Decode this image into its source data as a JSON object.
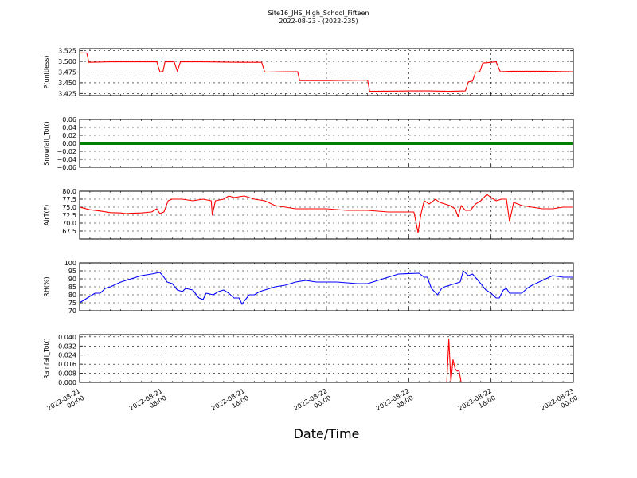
{
  "figure": {
    "title": "Site16_JHS_High_School_Fifteen",
    "subtitle": "2022-08-23 - (2022-235)",
    "xlabel": "Date/Time"
  },
  "x_ticks": [
    {
      "l1": "2022-08-21",
      "l2": "00:00",
      "t": 0
    },
    {
      "l1": "2022-08-21",
      "l2": "08:00",
      "t": 8
    },
    {
      "l1": "2022-08-21",
      "l2": "16:00",
      "t": 16
    },
    {
      "l1": "2022-08-22",
      "l2": "00:00",
      "t": 24
    },
    {
      "l1": "2022-08-22",
      "l2": "08:00",
      "t": 32
    },
    {
      "l1": "2022-08-22",
      "l2": "16:00",
      "t": 40
    },
    {
      "l1": "2022-08-23",
      "l2": "00:00",
      "t": 48
    }
  ],
  "chart_data": [
    {
      "type": "line",
      "ylabel": "P(unitless)",
      "color": "#ff0000",
      "xlim": [
        0,
        48
      ],
      "ylim": [
        3.42,
        3.53
      ],
      "yticks": [
        3.425,
        3.45,
        3.475,
        3.5,
        3.525
      ],
      "ytick_labels": [
        "3.425",
        "3.450",
        "3.475",
        "3.500",
        "3.525"
      ],
      "points": [
        [
          0,
          3.52
        ],
        [
          0.7,
          3.52
        ],
        [
          0.9,
          3.498
        ],
        [
          3,
          3.499
        ],
        [
          5,
          3.499
        ],
        [
          7.5,
          3.499
        ],
        [
          7.8,
          3.476
        ],
        [
          8.1,
          3.476
        ],
        [
          8.3,
          3.499
        ],
        [
          9.2,
          3.499
        ],
        [
          9.5,
          3.477
        ],
        [
          9.8,
          3.499
        ],
        [
          12,
          3.499
        ],
        [
          15.5,
          3.498
        ],
        [
          16.5,
          3.498
        ],
        [
          17.7,
          3.498
        ],
        [
          18,
          3.475
        ],
        [
          20,
          3.476
        ],
        [
          21.2,
          3.476
        ],
        [
          21.4,
          3.455
        ],
        [
          24,
          3.455
        ],
        [
          27,
          3.456
        ],
        [
          28,
          3.456
        ],
        [
          28.2,
          3.43
        ],
        [
          32,
          3.431
        ],
        [
          34,
          3.431
        ],
        [
          36,
          3.43
        ],
        [
          37.5,
          3.431
        ],
        [
          37.8,
          3.452
        ],
        [
          38.2,
          3.454
        ],
        [
          38.5,
          3.475
        ],
        [
          38.9,
          3.476
        ],
        [
          39.2,
          3.496
        ],
        [
          40,
          3.498
        ],
        [
          40.5,
          3.499
        ],
        [
          40.9,
          3.476
        ],
        [
          42,
          3.477
        ],
        [
          45,
          3.477
        ],
        [
          48,
          3.476
        ]
      ]
    },
    {
      "type": "line",
      "ylabel": "Snowfall_Tot()",
      "color": "#007f00",
      "xlim": [
        0,
        48
      ],
      "ylim": [
        -0.06,
        0.06
      ],
      "yticks": [
        -0.06,
        -0.04,
        -0.02,
        0,
        0.02,
        0.04,
        0.06
      ],
      "ytick_labels": [
        "−0.06",
        "−0.04",
        "−0.02",
        "0.00",
        "0.02",
        "0.04",
        "0.06"
      ],
      "points": [
        [
          0,
          0
        ],
        [
          48,
          0
        ]
      ]
    },
    {
      "type": "line",
      "ylabel": "AirT(F)",
      "color": "#ff0000",
      "xlim": [
        0,
        48
      ],
      "ylim": [
        65,
        80
      ],
      "yticks": [
        67.5,
        70,
        72.5,
        75,
        77.5,
        80
      ],
      "ytick_labels": [
        "67.5",
        "70.0",
        "72.5",
        "75.0",
        "77.5",
        "80.0"
      ],
      "points": [
        [
          0,
          75
        ],
        [
          1,
          74.2
        ],
        [
          2,
          73.8
        ],
        [
          3,
          73.3
        ],
        [
          4,
          73.2
        ],
        [
          4.5,
          73
        ],
        [
          5,
          73.1
        ],
        [
          6,
          73.2
        ],
        [
          7,
          73.5
        ],
        [
          7.5,
          74.5
        ],
        [
          7.8,
          73
        ],
        [
          8.2,
          73.5
        ],
        [
          8.6,
          77
        ],
        [
          9,
          77.5
        ],
        [
          10,
          77.5
        ],
        [
          11,
          77
        ],
        [
          12,
          77.5
        ],
        [
          12.8,
          77
        ],
        [
          12.9,
          72.5
        ],
        [
          13.2,
          77
        ],
        [
          14,
          77.5
        ],
        [
          14.5,
          78.5
        ],
        [
          15,
          78
        ],
        [
          16,
          78.5
        ],
        [
          16.5,
          78
        ],
        [
          17,
          77.5
        ],
        [
          18,
          77
        ],
        [
          19,
          75.5
        ],
        [
          20,
          75
        ],
        [
          21,
          74.5
        ],
        [
          24,
          74.5
        ],
        [
          26,
          74
        ],
        [
          28,
          74
        ],
        [
          30,
          73.5
        ],
        [
          32,
          73.5
        ],
        [
          32.5,
          73.5
        ],
        [
          32.6,
          72
        ],
        [
          32.9,
          67
        ],
        [
          33.2,
          73
        ],
        [
          33.5,
          77
        ],
        [
          34,
          76
        ],
        [
          34.6,
          77.5
        ],
        [
          35,
          76.5
        ],
        [
          36,
          75.5
        ],
        [
          36.5,
          74.5
        ],
        [
          36.8,
          72
        ],
        [
          37.1,
          75.5
        ],
        [
          37.5,
          74
        ],
        [
          38,
          74
        ],
        [
          38.5,
          76
        ],
        [
          39,
          77
        ],
        [
          39.6,
          79
        ],
        [
          40,
          78
        ],
        [
          40.5,
          77
        ],
        [
          41,
          77.5
        ],
        [
          41.5,
          77.5
        ],
        [
          41.8,
          70.5
        ],
        [
          42.2,
          76.5
        ],
        [
          43,
          75.5
        ],
        [
          44,
          75
        ],
        [
          45,
          74.5
        ],
        [
          46,
          74.5
        ],
        [
          47,
          75
        ],
        [
          48,
          75
        ]
      ]
    },
    {
      "type": "line",
      "ylabel": "RH(%)",
      "color": "#0000ff",
      "xlim": [
        0,
        48
      ],
      "ylim": [
        70,
        100
      ],
      "yticks": [
        70,
        75,
        80,
        85,
        90,
        95,
        100
      ],
      "ytick_labels": [
        "70",
        "75",
        "80",
        "85",
        "90",
        "95",
        "100"
      ],
      "points": [
        [
          0,
          75
        ],
        [
          0.5,
          77
        ],
        [
          1,
          79
        ],
        [
          1.5,
          81
        ],
        [
          2,
          81
        ],
        [
          2.5,
          84
        ],
        [
          3,
          85
        ],
        [
          4,
          88
        ],
        [
          5,
          90
        ],
        [
          6,
          92
        ],
        [
          7,
          93
        ],
        [
          7.8,
          94
        ],
        [
          8.2,
          91
        ],
        [
          8.5,
          88
        ],
        [
          9,
          87
        ],
        [
          9.5,
          83
        ],
        [
          10,
          82
        ],
        [
          10.3,
          84
        ],
        [
          11,
          83
        ],
        [
          11.6,
          78
        ],
        [
          12,
          77
        ],
        [
          12.3,
          81
        ],
        [
          13,
          80
        ],
        [
          13.5,
          82
        ],
        [
          14,
          83
        ],
        [
          14.5,
          81
        ],
        [
          15,
          78
        ],
        [
          15.5,
          78
        ],
        [
          15.8,
          74
        ],
        [
          16,
          76
        ],
        [
          16.5,
          80
        ],
        [
          17,
          80
        ],
        [
          17.5,
          82
        ],
        [
          18,
          83
        ],
        [
          19,
          85
        ],
        [
          20,
          86
        ],
        [
          21,
          88
        ],
        [
          22,
          89
        ],
        [
          23,
          88
        ],
        [
          25,
          88
        ],
        [
          27,
          87
        ],
        [
          28,
          87
        ],
        [
          29,
          89
        ],
        [
          30,
          91
        ],
        [
          31,
          93
        ],
        [
          33,
          93.5
        ],
        [
          33.5,
          91
        ],
        [
          33.8,
          91
        ],
        [
          34.2,
          84
        ],
        [
          34.8,
          80
        ],
        [
          35.2,
          84
        ],
        [
          35.5,
          85
        ],
        [
          36,
          86
        ],
        [
          36.5,
          87
        ],
        [
          37,
          88
        ],
        [
          37.3,
          95
        ],
        [
          37.8,
          92
        ],
        [
          38.2,
          93
        ],
        [
          39,
          87
        ],
        [
          39.5,
          83
        ],
        [
          40,
          81
        ],
        [
          40.5,
          78
        ],
        [
          40.8,
          78
        ],
        [
          41.2,
          83
        ],
        [
          41.5,
          84
        ],
        [
          41.8,
          81
        ],
        [
          42,
          81
        ],
        [
          43,
          81
        ],
        [
          43.5,
          84
        ],
        [
          44,
          86
        ],
        [
          45,
          89
        ],
        [
          46,
          92
        ],
        [
          47,
          91
        ],
        [
          48,
          91
        ]
      ]
    },
    {
      "type": "line",
      "ylabel": "Rainfall_Tot()",
      "color": "#ff0000",
      "xlim": [
        0,
        48
      ],
      "ylim": [
        0,
        0.042
      ],
      "yticks": [
        0,
        0.008,
        0.016,
        0.024,
        0.032,
        0.04
      ],
      "ytick_labels": [
        "0.000",
        "0.008",
        "0.016",
        "0.024",
        "0.032",
        "0.040"
      ],
      "points": [
        [
          0,
          0
        ],
        [
          35.7,
          0
        ],
        [
          35.9,
          0.038
        ],
        [
          36.1,
          0
        ],
        [
          36.3,
          0.02
        ],
        [
          36.5,
          0.012
        ],
        [
          36.7,
          0.01
        ],
        [
          36.9,
          0.01
        ],
        [
          37.1,
          0
        ],
        [
          48,
          0
        ]
      ]
    }
  ]
}
